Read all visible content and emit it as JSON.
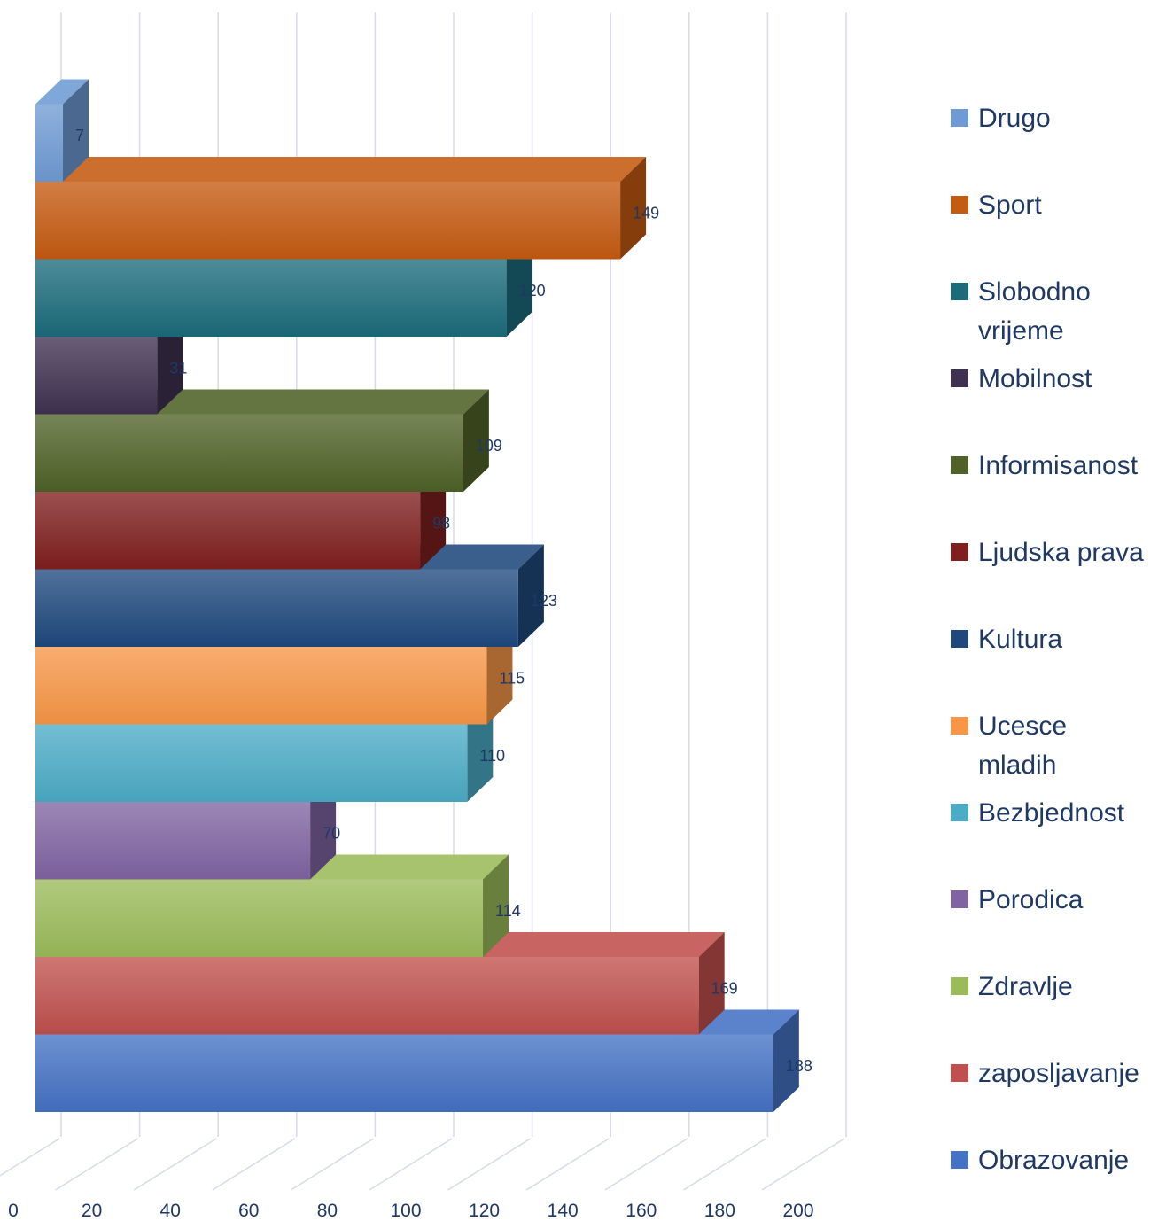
{
  "chart_data": {
    "type": "bar",
    "orientation": "horizontal",
    "style": "3d",
    "xlim": [
      0,
      200
    ],
    "x_ticks": [
      "0",
      "20",
      "40",
      "60",
      "80",
      "100",
      "120",
      "140",
      "160",
      "180",
      "200"
    ],
    "legend_position": "right",
    "grid": true,
    "series": [
      {
        "name": "Obrazovanje",
        "value": 188,
        "label": "188",
        "color": "#4472c4",
        "legend": [
          "Obrazovanje"
        ]
      },
      {
        "name": "zaposljavanje",
        "value": 169,
        "label": "169",
        "color": "#c0504d",
        "legend": [
          "zaposljavanje"
        ]
      },
      {
        "name": "Zdravlje",
        "value": 114,
        "label": "114",
        "color": "#9bbb59",
        "legend": [
          "Zdravlje"
        ]
      },
      {
        "name": "Porodica",
        "value": 70,
        "label": "70",
        "color": "#8064a2",
        "legend": [
          "Porodica"
        ]
      },
      {
        "name": "Bezbjednost",
        "value": 110,
        "label": "110",
        "color": "#4bacc6",
        "legend": [
          "Bezbjednost"
        ]
      },
      {
        "name": "Ucesce mladih",
        "value": 115,
        "label": "115",
        "color": "#f79646",
        "legend": [
          "Ucesce",
          "mladih"
        ]
      },
      {
        "name": "Kultura",
        "value": 123,
        "label": "123",
        "color": "#1f497d",
        "legend": [
          "Kultura"
        ]
      },
      {
        "name": "Ljudska prava",
        "value": 98,
        "label": "98",
        "color": "#7f1f1f",
        "legend": [
          "Ljudska prava"
        ]
      },
      {
        "name": "Informisanost",
        "value": 109,
        "label": "109",
        "color": "#4f6228",
        "legend": [
          "Informisanost"
        ]
      },
      {
        "name": "Mobilnost",
        "value": 31,
        "label": "31",
        "color": "#3f3151",
        "legend": [
          "Mobilnost"
        ]
      },
      {
        "name": "Slobodno vrijeme",
        "value": 120,
        "label": "120",
        "color": "#1b6b7b",
        "legend": [
          "Slobodno",
          "vrijeme"
        ]
      },
      {
        "name": "Sport",
        "value": 149,
        "label": "149",
        "color": "#c55a11",
        "legend": [
          "Sport"
        ]
      },
      {
        "name": "Drugo",
        "value": 7,
        "label": "7",
        "color": "#6f9bd4",
        "legend": [
          "Drugo"
        ]
      }
    ]
  }
}
